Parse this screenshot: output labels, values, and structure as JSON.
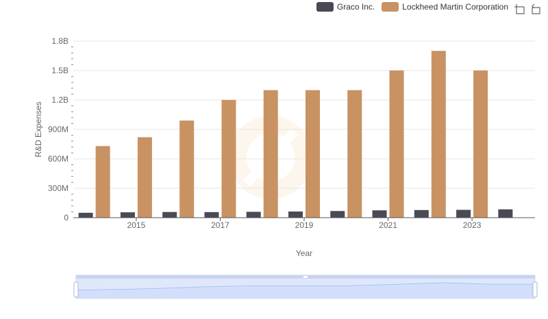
{
  "legend": {
    "items": [
      {
        "name": "Graco Inc.",
        "color": "#4a4a55"
      },
      {
        "name": "Lockheed Martin Corporation",
        "color": "#c99262"
      }
    ]
  },
  "toolbox": {
    "icons": [
      "zoom-icon",
      "restore-icon"
    ]
  },
  "chart_data": {
    "type": "bar",
    "xlabel": "Year",
    "ylabel": "R&D Expenses",
    "categories": [
      "2014",
      "2015",
      "2016",
      "2017",
      "2018",
      "2019",
      "2020",
      "2021",
      "2022",
      "2023",
      "2024"
    ],
    "x_tick_labels": [
      "2015",
      "2017",
      "2019",
      "2021",
      "2023"
    ],
    "y_tick_labels": [
      "0",
      "300M",
      "600M",
      "900M",
      "1.2B",
      "1.5B",
      "1.8B"
    ],
    "ylim": [
      0,
      1800000000
    ],
    "grid": true,
    "legend_position": "top-right",
    "series": [
      {
        "name": "Graco Inc.",
        "color": "#4a4a55",
        "values": [
          50000000,
          55000000,
          58000000,
          57000000,
          60000000,
          63000000,
          68000000,
          75000000,
          78000000,
          80000000,
          85000000
        ]
      },
      {
        "name": "Lockheed Martin Corporation",
        "color": "#c99262",
        "values": [
          730000000,
          820000000,
          990000000,
          1200000000,
          1300000000,
          1300000000,
          1300000000,
          1500000000,
          1700000000,
          1500000000,
          null
        ]
      }
    ]
  }
}
